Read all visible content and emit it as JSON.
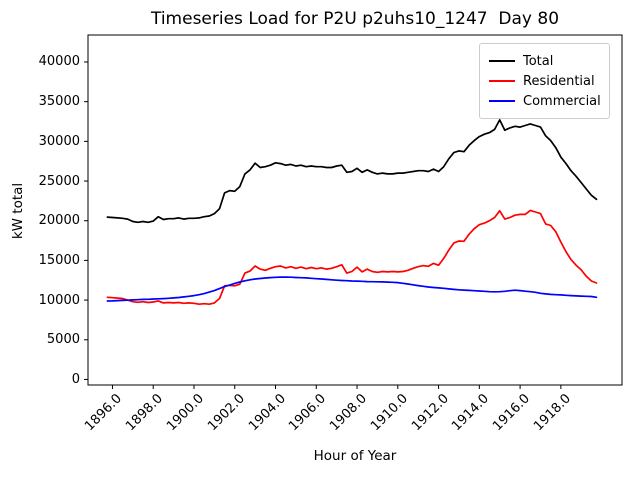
{
  "chart_data": {
    "type": "line",
    "title": "Timeseries Load for P2U p2uhs10_1247  Day 80",
    "xlabel": "Hour of Year",
    "ylabel": "kW total",
    "legend_position": "upper right",
    "grid": false,
    "xlim": [
      1894.8,
      1921.0
    ],
    "ylim": [
      -700,
      43400
    ],
    "xticks": [
      1896.0,
      1898.0,
      1900.0,
      1902.0,
      1904.0,
      1906.0,
      1908.0,
      1910.0,
      1912.0,
      1914.0,
      1916.0,
      1918.0
    ],
    "xtick_labels": [
      "1896.0",
      "1898.0",
      "1900.0",
      "1902.0",
      "1904.0",
      "1906.0",
      "1908.0",
      "1910.0",
      "1912.0",
      "1914.0",
      "1916.0",
      "1918.0"
    ],
    "yticks": [
      0,
      5000,
      10000,
      15000,
      20000,
      25000,
      30000,
      35000,
      40000
    ],
    "ytick_labels": [
      "0",
      "5000",
      "10000",
      "15000",
      "20000",
      "25000",
      "30000",
      "35000",
      "40000"
    ],
    "x": [
      1895.75,
      1896.0,
      1896.25,
      1896.5,
      1896.75,
      1897.0,
      1897.25,
      1897.5,
      1897.75,
      1898.0,
      1898.25,
      1898.5,
      1898.75,
      1899.0,
      1899.25,
      1899.5,
      1899.75,
      1900.0,
      1900.25,
      1900.5,
      1900.75,
      1901.0,
      1901.25,
      1901.5,
      1901.75,
      1902.0,
      1902.25,
      1902.5,
      1902.75,
      1903.0,
      1903.25,
      1903.5,
      1903.75,
      1904.0,
      1904.25,
      1904.5,
      1904.75,
      1905.0,
      1905.25,
      1905.5,
      1905.75,
      1906.0,
      1906.25,
      1906.5,
      1906.75,
      1907.0,
      1907.25,
      1907.5,
      1907.75,
      1908.0,
      1908.25,
      1908.5,
      1908.75,
      1909.0,
      1909.25,
      1909.5,
      1909.75,
      1910.0,
      1910.25,
      1910.5,
      1910.75,
      1911.0,
      1911.25,
      1911.5,
      1911.75,
      1912.0,
      1912.25,
      1912.5,
      1912.75,
      1913.0,
      1913.25,
      1913.5,
      1913.75,
      1914.0,
      1914.25,
      1914.5,
      1914.75,
      1915.0,
      1915.25,
      1915.5,
      1915.75,
      1916.0,
      1916.25,
      1916.5,
      1916.75,
      1917.0,
      1917.25,
      1917.5,
      1917.75,
      1918.0,
      1918.25,
      1918.5,
      1918.75,
      1919.0,
      1919.25,
      1919.5,
      1919.75
    ],
    "series": [
      {
        "name": "Total",
        "color": "#000000",
        "values": [
          20450,
          20400,
          20350,
          20300,
          20200,
          19900,
          19800,
          19900,
          19800,
          19950,
          20500,
          20150,
          20250,
          20250,
          20350,
          20200,
          20300,
          20300,
          20350,
          20500,
          20600,
          20900,
          21500,
          23500,
          23800,
          23700,
          24300,
          25900,
          26400,
          27250,
          26700,
          26800,
          27000,
          27300,
          27200,
          27000,
          27100,
          26900,
          27000,
          26800,
          26900,
          26800,
          26800,
          26700,
          26700,
          26900,
          27000,
          26100,
          26200,
          26600,
          26100,
          26400,
          26100,
          25900,
          26000,
          25900,
          25900,
          26000,
          26000,
          26100,
          26200,
          26300,
          26300,
          26200,
          26500,
          26200,
          26800,
          27800,
          28600,
          28800,
          28700,
          29500,
          30100,
          30600,
          30900,
          31100,
          31500,
          32700,
          31400,
          31700,
          31900,
          31800,
          32000,
          32200,
          32000,
          31800,
          30700,
          30100,
          29200,
          28000,
          27200,
          26300,
          25600,
          24800,
          24000,
          23200,
          22700
        ]
      },
      {
        "name": "Residential",
        "color": "#ff0000",
        "values": [
          10350,
          10300,
          10250,
          10200,
          10000,
          9800,
          9720,
          9800,
          9700,
          9760,
          9900,
          9650,
          9700,
          9640,
          9700,
          9600,
          9650,
          9600,
          9480,
          9550,
          9480,
          9650,
          10200,
          11800,
          11850,
          11800,
          12000,
          13400,
          13650,
          14300,
          13900,
          13750,
          14000,
          14200,
          14300,
          14050,
          14200,
          14000,
          14150,
          13950,
          14100,
          13950,
          14050,
          13900,
          14000,
          14200,
          14450,
          13400,
          13600,
          14150,
          13550,
          13900,
          13600,
          13500,
          13600,
          13550,
          13600,
          13550,
          13600,
          13750,
          14000,
          14200,
          14350,
          14250,
          14620,
          14400,
          15250,
          16300,
          17200,
          17450,
          17400,
          18300,
          19000,
          19500,
          19700,
          20000,
          20400,
          21250,
          20200,
          20400,
          20700,
          20800,
          20800,
          21300,
          21100,
          20900,
          19600,
          19400,
          18600,
          17300,
          16100,
          15100,
          14400,
          13800,
          13000,
          12400,
          12150
        ]
      },
      {
        "name": "Commercial",
        "color": "#0000ff",
        "values": [
          9880,
          9900,
          9930,
          9960,
          9990,
          10020,
          10050,
          10080,
          10100,
          10130,
          10160,
          10190,
          10230,
          10280,
          10330,
          10400,
          10480,
          10570,
          10680,
          10820,
          11000,
          11200,
          11450,
          11700,
          11900,
          12100,
          12280,
          12430,
          12550,
          12650,
          12720,
          12780,
          12830,
          12870,
          12890,
          12900,
          12880,
          12850,
          12820,
          12790,
          12750,
          12700,
          12650,
          12600,
          12550,
          12500,
          12470,
          12440,
          12410,
          12390,
          12360,
          12330,
          12310,
          12300,
          12290,
          12270,
          12240,
          12200,
          12120,
          12030,
          11930,
          11830,
          11730,
          11650,
          11590,
          11540,
          11480,
          11410,
          11350,
          11300,
          11260,
          11220,
          11180,
          11150,
          11100,
          11060,
          11040,
          11060,
          11100,
          11180,
          11250,
          11200,
          11120,
          11050,
          10980,
          10860,
          10780,
          10720,
          10680,
          10650,
          10600,
          10560,
          10530,
          10500,
          10480,
          10450,
          10350
        ]
      }
    ]
  }
}
